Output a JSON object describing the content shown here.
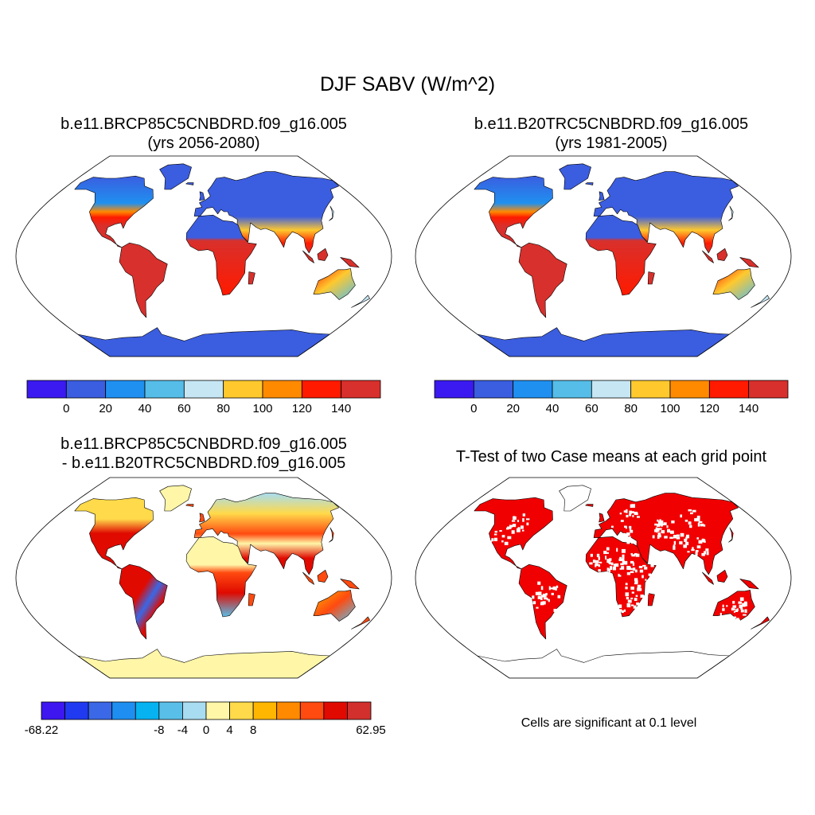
{
  "figure": {
    "title": "DJF SABV (W/m^2)"
  },
  "panels": [
    {
      "id": "case",
      "title_line1": "b.e11.BRCP85C5CNBDRD.f09_g16.005",
      "title_line2": "(yrs 2056-2080)"
    },
    {
      "id": "control",
      "title_line1": "b.e11.B20TRC5CNBDRD.f09_g16.005",
      "title_line2": "(yrs 1981-2005)"
    },
    {
      "id": "difference",
      "title_line1": "b.e11.BRCP85C5CNBDRD.f09_g16.005",
      "title_line2": "- b.e11.B20TRC5CNBDRD.f09_g16.005"
    },
    {
      "id": "ttest",
      "title_line1": "T-Test of two Case means at each grid point",
      "note": "Cells are significant at 0.1 level"
    }
  ],
  "colorbars": {
    "absolute": {
      "colors": [
        "#3a1af0",
        "#3b5de0",
        "#1f90f0",
        "#55bde8",
        "#c6e6f4",
        "#ffc92e",
        "#ff8a00",
        "#ff1a00",
        "#d8302c"
      ],
      "labels": [
        "0",
        "20",
        "40",
        "60",
        "80",
        "100",
        "120",
        "140"
      ]
    },
    "difference": {
      "colors": [
        "#3d16f0",
        "#1f3af0",
        "#3a68e6",
        "#1e8ff0",
        "#06b2f0",
        "#5abfe8",
        "#a8dcf0",
        "#fff6a8",
        "#ffda4a",
        "#ffb600",
        "#ff8a00",
        "#ff4a10",
        "#e00a00",
        "#d2302c"
      ],
      "labels": [
        "-68.22",
        "-8",
        "-4",
        "0",
        "4",
        "8",
        "62.95"
      ]
    }
  },
  "map_colors": {
    "ocean": "#ffffff",
    "antarctica_abs": "#3b5de0",
    "antarctica_diff": "#fff6a8",
    "significant": "#f00000"
  }
}
